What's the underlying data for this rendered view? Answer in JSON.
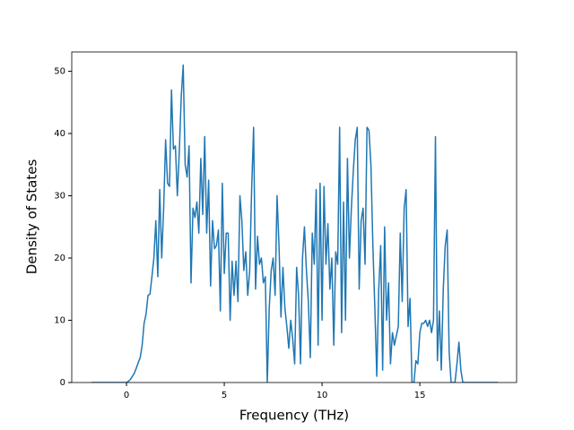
{
  "chart_data": {
    "type": "line",
    "x_label": "Frequency (THz)",
    "y_label": "Density of States",
    "xlim": [
      -2.8,
      19.95
    ],
    "ylim": [
      0,
      53.1
    ],
    "xticks": [
      0,
      5,
      10,
      15
    ],
    "yticks": [
      0,
      10,
      20,
      30,
      40,
      50
    ],
    "x": [
      -1.8,
      0.0,
      0.1,
      0.2,
      0.3,
      0.4,
      0.5,
      0.6,
      0.7,
      0.8,
      0.9,
      1.0,
      1.1,
      1.2,
      1.3,
      1.4,
      1.5,
      1.6,
      1.7,
      1.8,
      1.9,
      2.0,
      2.1,
      2.2,
      2.3,
      2.4,
      2.5,
      2.6,
      2.7,
      2.8,
      2.9,
      3.0,
      3.1,
      3.2,
      3.3,
      3.4,
      3.5,
      3.6,
      3.7,
      3.8,
      3.9,
      4.0,
      4.1,
      4.2,
      4.3,
      4.4,
      4.5,
      4.6,
      4.7,
      4.8,
      4.9,
      5.0,
      5.1,
      5.2,
      5.3,
      5.4,
      5.5,
      5.6,
      5.7,
      5.8,
      5.9,
      6.0,
      6.1,
      6.2,
      6.3,
      6.4,
      6.5,
      6.6,
      6.7,
      6.8,
      6.9,
      7.0,
      7.1,
      7.2,
      7.3,
      7.4,
      7.5,
      7.6,
      7.7,
      7.8,
      7.9,
      8.0,
      8.1,
      8.2,
      8.3,
      8.4,
      8.5,
      8.6,
      8.7,
      8.8,
      8.9,
      9.0,
      9.1,
      9.2,
      9.3,
      9.4,
      9.5,
      9.6,
      9.7,
      9.8,
      9.9,
      10.0,
      10.1,
      10.2,
      10.3,
      10.4,
      10.5,
      10.6,
      10.7,
      10.8,
      10.9,
      11.0,
      11.1,
      11.2,
      11.3,
      11.4,
      11.5,
      11.6,
      11.7,
      11.8,
      11.9,
      12.0,
      12.1,
      12.2,
      12.3,
      12.4,
      12.5,
      12.6,
      12.7,
      12.8,
      12.9,
      13.0,
      13.1,
      13.2,
      13.3,
      13.4,
      13.5,
      13.6,
      13.7,
      13.8,
      13.9,
      14.0,
      14.1,
      14.2,
      14.3,
      14.4,
      14.5,
      14.6,
      14.7,
      14.8,
      14.9,
      15.0,
      15.1,
      15.2,
      15.3,
      15.4,
      15.5,
      15.6,
      15.7,
      15.8,
      15.9,
      16.0,
      16.1,
      16.2,
      16.3,
      16.4,
      16.5,
      16.6,
      16.7,
      16.8,
      16.9,
      17.0,
      17.1,
      17.2,
      17.3,
      17.4,
      19.0
    ],
    "series": [
      {
        "color": "#1f77b4",
        "values": [
          0,
          0,
          0.2,
          0.5,
          1,
          1.5,
          2.3,
          3.2,
          4,
          6,
          9.5,
          11,
          14,
          14.2,
          17,
          20,
          26,
          17,
          31,
          20,
          28,
          39,
          32,
          31.5,
          47,
          37.5,
          38,
          30,
          37,
          46,
          51,
          35,
          33,
          38,
          16,
          28,
          26.5,
          29,
          24,
          36,
          27,
          39.5,
          24,
          32.5,
          15.5,
          26,
          21.5,
          22,
          24.5,
          11.5,
          32,
          17.5,
          24,
          24,
          10,
          19.5,
          14,
          19.5,
          13,
          30,
          26,
          18,
          21,
          14,
          18,
          31,
          41,
          15,
          23.5,
          19,
          20,
          16,
          17,
          0,
          12,
          18,
          20,
          14,
          30,
          22,
          10.5,
          18.5,
          12,
          9,
          5.5,
          10,
          7,
          3,
          18.5,
          14,
          3,
          20,
          25,
          18,
          13,
          4,
          24,
          19,
          31,
          6,
          32,
          10,
          31.5,
          19,
          25.5,
          15,
          20,
          6,
          21,
          19,
          41,
          8,
          29,
          10,
          36,
          20,
          28,
          34,
          39,
          41,
          15,
          26,
          28,
          19,
          41,
          40.5,
          35,
          22,
          12,
          1,
          15,
          22,
          2,
          25,
          10,
          16,
          3,
          8,
          6,
          7.5,
          9,
          24,
          13,
          28,
          31,
          9,
          13.5,
          0,
          0,
          3.5,
          3,
          8,
          9.5,
          9.5,
          10,
          9,
          10,
          8,
          10,
          39.5,
          3.5,
          11.5,
          2,
          15,
          22,
          24.5,
          5,
          0,
          0,
          0,
          3,
          6.5,
          2,
          0,
          0,
          0,
          0
        ]
      }
    ]
  }
}
